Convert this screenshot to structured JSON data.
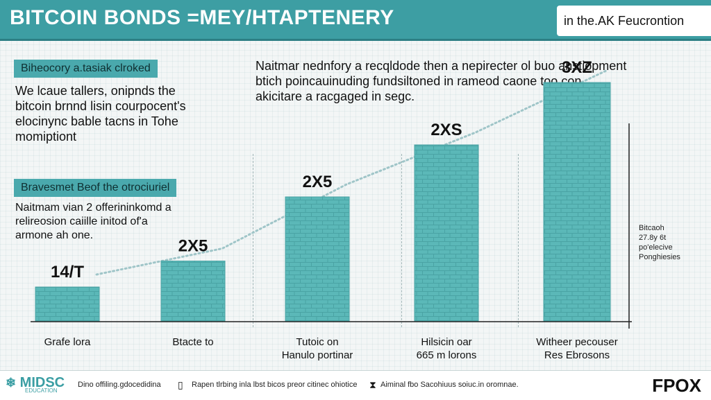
{
  "header": {
    "title": "BITCOIN BONDS =MEY/HTAPTENERY",
    "right_text": "in the.AK Feucrontion"
  },
  "left_panel": {
    "section1_label": "Biheocory a.tasiak clroked",
    "section1_text": [
      "We lcaue tallers, onipnds the",
      "bitcoin brnnd lisin courpocent's",
      "elocinync bable tacns in Tohe",
      "momiptiont"
    ],
    "section2_label": "Bravesmet Beof the otrociuriel",
    "section2_text": [
      "Naitmam vian 2 offerininkomd a",
      "relireosion caiille initod of'a",
      "armone ah one."
    ]
  },
  "top_note": [
    "Naitmar nednfory a recqldode then a nepirecter ol buo anstiopment",
    "btich poincauinuding fundsiltoned in rameod caone too con",
    "akicitare a racgaged in segc."
  ],
  "side_note": [
    "Bitcaoh",
    "27.8y 6t",
    "po'elecive",
    "Ponghiesies"
  ],
  "chart_data": {
    "type": "bar",
    "categories": [
      "Grafe lora",
      "Btacte to",
      "Tutoic on\nHanulo portinar",
      "Hilsicin oar\n665 m lorons",
      "Witheer pecouser\nRes Ebrosons"
    ],
    "values": [
      1,
      1.75,
      3.6,
      5.1,
      6.9
    ],
    "data_labels": [
      "14/T",
      "2X5",
      "2X5",
      "2XS",
      "3XZ"
    ],
    "ylim": [
      0,
      8
    ],
    "colors": {
      "bar": "#5bb8b8",
      "bar_line": "#4aa3a4",
      "trend": "#9fc5c8",
      "axis": "#222222"
    },
    "grid": false,
    "trendline": true
  },
  "footer": {
    "logo": "MIDSC",
    "logo_icon": "gear-snowflake-icon",
    "logo_sub": "EDUCATION",
    "items": [
      {
        "text": "Dino offiling.gdocedidina",
        "icon": ""
      },
      {
        "text": "Rapen tlrbing inla lbst bicos preor citinec ohiotice",
        "icon": "document-icon"
      },
      {
        "text": "Aiminal fbo Sacohiuus soiuc.in oromnae.",
        "icon": "hourglass-icon"
      }
    ],
    "brand": "FPOX"
  }
}
